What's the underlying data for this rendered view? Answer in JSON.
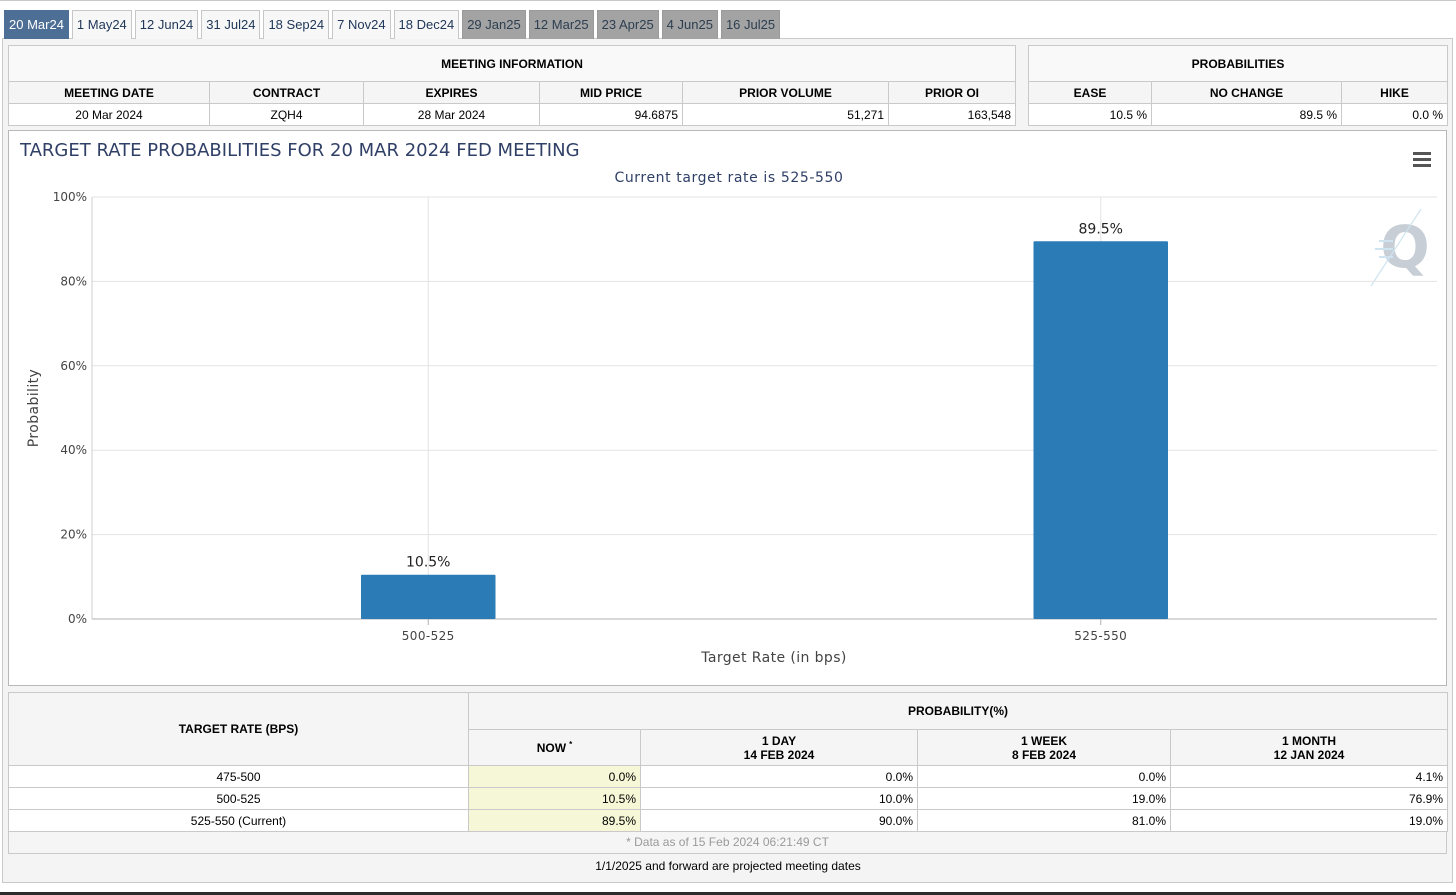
{
  "tabs": [
    {
      "label": "20 Mar24",
      "state": "active"
    },
    {
      "label": "1 May24",
      "state": "normal"
    },
    {
      "label": "12 Jun24",
      "state": "normal"
    },
    {
      "label": "31 Jul24",
      "state": "normal"
    },
    {
      "label": "18 Sep24",
      "state": "normal"
    },
    {
      "label": "7 Nov24",
      "state": "normal"
    },
    {
      "label": "18 Dec24",
      "state": "normal"
    },
    {
      "label": "29 Jan25",
      "state": "projected"
    },
    {
      "label": "12 Mar25",
      "state": "projected"
    },
    {
      "label": "23 Apr25",
      "state": "projected"
    },
    {
      "label": "4 Jun25",
      "state": "projected"
    },
    {
      "label": "16 Jul25",
      "state": "projected"
    }
  ],
  "meeting_info": {
    "title": "MEETING INFORMATION",
    "headers": [
      "MEETING DATE",
      "CONTRACT",
      "EXPIRES",
      "MID PRICE",
      "PRIOR VOLUME",
      "PRIOR OI"
    ],
    "row": [
      "20 Mar 2024",
      "ZQH4",
      "28 Mar 2024",
      "94.6875",
      "51,271",
      "163,548"
    ]
  },
  "probabilities": {
    "title": "PROBABILITIES",
    "headers": [
      "EASE",
      "NO CHANGE",
      "HIKE"
    ],
    "row": [
      "10.5 %",
      "89.5 %",
      "0.0 %"
    ]
  },
  "chart_data": {
    "type": "bar",
    "title": "TARGET RATE PROBABILITIES FOR 20 MAR 2024 FED MEETING",
    "subtitle": "Current target rate is 525-550",
    "xlabel": "Target Rate (in bps)",
    "ylabel": "Probability",
    "categories": [
      "500-525",
      "525-550"
    ],
    "values": [
      10.5,
      89.5
    ],
    "data_labels": [
      "10.5%",
      "89.5%"
    ],
    "ylim": [
      0,
      100
    ],
    "yticks": [
      "0%",
      "20%",
      "40%",
      "60%",
      "80%",
      "100%"
    ],
    "grid": true,
    "bar_color": "#2a7bb6",
    "watermark": "Q"
  },
  "history": {
    "target_rate_header": "TARGET RATE (BPS)",
    "probability_header": "PROBABILITY(%)",
    "columns": [
      {
        "line1": "NOW",
        "line2": "",
        "marker": "*"
      },
      {
        "line1": "1 DAY",
        "line2": "14 FEB 2024",
        "marker": ""
      },
      {
        "line1": "1 WEEK",
        "line2": "8 FEB 2024",
        "marker": ""
      },
      {
        "line1": "1 MONTH",
        "line2": "12 JAN 2024",
        "marker": ""
      }
    ],
    "rows": [
      {
        "rate": "475-500",
        "values": [
          "0.0%",
          "0.0%",
          "0.0%",
          "4.1%"
        ]
      },
      {
        "rate": "500-525",
        "values": [
          "10.5%",
          "10.0%",
          "19.0%",
          "76.9%"
        ]
      },
      {
        "rate": "525-550 (Current)",
        "values": [
          "89.5%",
          "90.0%",
          "81.0%",
          "19.0%"
        ]
      }
    ],
    "footnote": "* Data as of 15 Feb 2024 06:21:49 CT"
  },
  "projected_note": "1/1/2025 and forward are projected meeting dates",
  "icons": {
    "menu": "hamburger-menu-icon"
  },
  "colors": {
    "active_tab": "#4e6f95",
    "projected_tab": "#a3a3a3",
    "bar": "#2a7bb6",
    "title": "#2f3f66"
  }
}
